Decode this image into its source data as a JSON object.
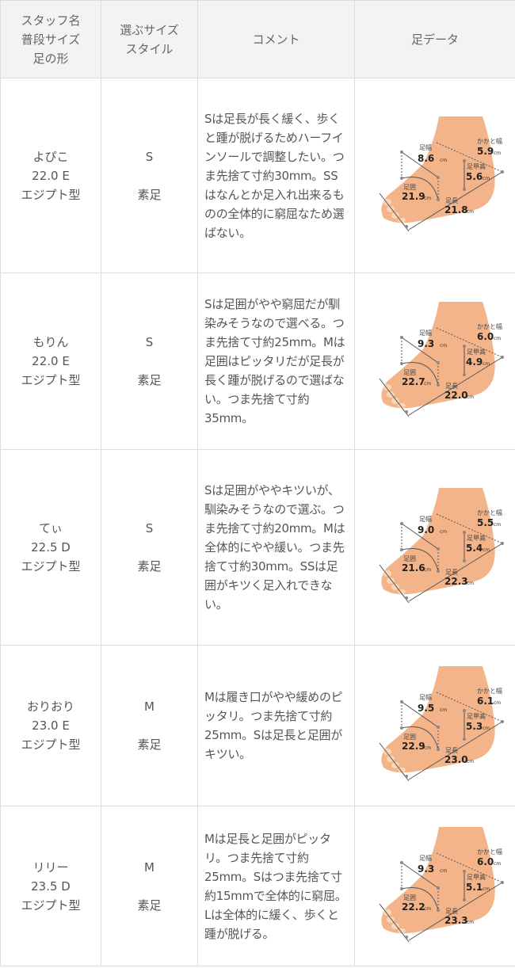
{
  "header": {
    "col1": [
      "スタッフ名",
      "普段サイズ",
      "足の形"
    ],
    "col2": [
      "選ぶサイズ",
      "スタイル"
    ],
    "col3": "コメント",
    "col4": "足データ"
  },
  "labels": {
    "width": "足幅",
    "heel": "かかと幅",
    "instep": "足甲高",
    "girth": "足囲",
    "length": "足長",
    "unit": "cm"
  },
  "rows": [
    {
      "name": "よぴこ",
      "size": "22.0 E",
      "shape": "エジプト型",
      "choice": "S",
      "style": "素足",
      "comment": "Sは足長が長く緩く、歩くと踵が脱げるためハーフインソールで調整したい。つま先捨て寸約30mm。SSはなんとか足入れ出来るものの全体的に窮屈なため選ばない。",
      "foot": {
        "width": "8.6",
        "heel": "5.9",
        "instep": "5.6",
        "girth": "21.9",
        "length": "21.8"
      }
    },
    {
      "name": "もりん",
      "size": "22.0 E",
      "shape": "エジプト型",
      "choice": "S",
      "style": "素足",
      "comment": "Sは足囲がやや窮屈だが馴染みそうなので選べる。つま先捨て寸約25mm。Mは足囲はピッタリだが足長が長く踵が脱げるので選ばない。つま先捨て寸約35mm。",
      "foot": {
        "width": "9.3",
        "heel": "6.0",
        "instep": "4.9",
        "girth": "22.7",
        "length": "22.0"
      }
    },
    {
      "name": "てぃ",
      "size": "22.5 D",
      "shape": "エジプト型",
      "choice": "S",
      "style": "素足",
      "comment": "Sは足囲がややキツいが、馴染みそうなので選ぶ。つま先捨て寸約20mm。Mは全体的にやや緩い。つま先捨て寸約30mm。SSは足囲がキツく足入れできない。",
      "foot": {
        "width": "9.0",
        "heel": "5.5",
        "instep": "5.4",
        "girth": "21.6",
        "length": "22.3"
      }
    },
    {
      "name": "おりおり",
      "size": "23.0 E",
      "shape": "エジプト型",
      "choice": "M",
      "style": "素足",
      "comment": "Mは履き口がやや緩めのピッタリ。つま先捨て寸約25mm。Sは足長と足囲がキツい。",
      "foot": {
        "width": "9.5",
        "heel": "6.1",
        "instep": "5.3",
        "girth": "22.9",
        "length": "23.0"
      }
    },
    {
      "name": "リリー",
      "size": "23.5 D",
      "shape": "エジプト型",
      "choice": "M",
      "style": "素足",
      "comment": "Mは足長と足囲がピッタリ。つま先捨て寸約25mm。Sはつま先捨て寸約15mmで全体的に窮屈。Lは全体的に緩く、歩くと踵が脱げる。",
      "foot": {
        "width": "9.3",
        "heel": "6.0",
        "instep": "5.1",
        "girth": "22.2",
        "length": "23.3"
      }
    }
  ]
}
